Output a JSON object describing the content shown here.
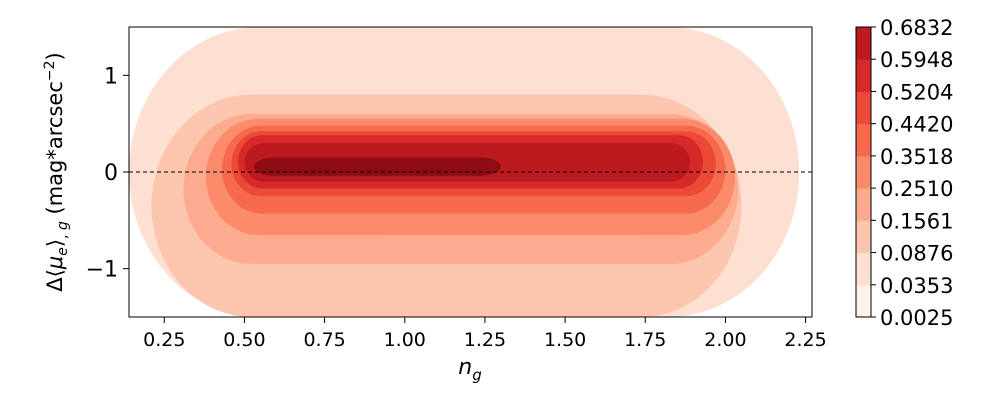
{
  "chart_data": {
    "type": "contour",
    "title": "",
    "xlabel": "n_g",
    "ylabel": "Δ⟨μ_e⟩, g (mag*arcsec⁻²)",
    "xlim": [
      0.14,
      2.27
    ],
    "ylim": [
      -1.5,
      1.5
    ],
    "x_ticks": [
      0.25,
      0.5,
      0.75,
      1.0,
      1.25,
      1.5,
      1.75,
      2.0,
      2.25
    ],
    "x_tick_labels": [
      "0.25",
      "0.50",
      "0.75",
      "1.00",
      "1.25",
      "1.50",
      "1.75",
      "2.00",
      "2.25"
    ],
    "y_ticks": [
      1,
      0,
      -1
    ],
    "y_tick_labels": [
      "1",
      "0",
      "−1"
    ],
    "reference_line": {
      "y": 0,
      "style": "dashed"
    },
    "colormap": "Reds",
    "levels": [
      0.0025,
      0.0353,
      0.0876,
      0.1561,
      0.251,
      0.3518,
      0.442,
      0.5204,
      0.5948,
      0.6832
    ],
    "colorbar_labels": [
      "0.0025",
      "0.0353",
      "0.0876",
      "0.1561",
      "0.2510",
      "0.3518",
      "0.4420",
      "0.5204",
      "0.5948",
      "0.6832"
    ],
    "level_colors": [
      "#fff0e8",
      "#fde0d2",
      "#fcc5ad",
      "#fcab8f",
      "#fb8b6b",
      "#f6694c",
      "#ec4a36",
      "#d8292a",
      "#bc1a1f",
      "#8f0c14"
    ],
    "density_regions": [
      {
        "level": 1,
        "x_range": [
          0.14,
          2.23
        ],
        "y_range": [
          -1.5,
          1.5
        ]
      },
      {
        "level": 2,
        "x_range": [
          0.21,
          2.05
        ],
        "y_range": [
          -1.5,
          0.8
        ]
      },
      {
        "level": 3,
        "x_range": [
          0.31,
          2.04
        ],
        "y_range": [
          -0.95,
          0.6
        ]
      },
      {
        "level": 4,
        "x_range": [
          0.38,
          2.03
        ],
        "y_range": [
          -0.65,
          0.55
        ]
      },
      {
        "level": 5,
        "x_range": [
          0.43,
          2.0
        ],
        "y_range": [
          -0.43,
          0.48
        ]
      },
      {
        "level": 6,
        "x_range": [
          0.46,
          1.97
        ],
        "y_range": [
          -0.25,
          0.42
        ]
      },
      {
        "level": 7,
        "x_range": [
          0.48,
          1.93
        ],
        "y_range": [
          -0.17,
          0.38
        ]
      },
      {
        "level": 8,
        "x_range": [
          0.5,
          1.89
        ],
        "y_range": [
          -0.1,
          0.3
        ]
      },
      {
        "level": 9,
        "x_range": [
          0.53,
          1.3
        ],
        "y_range": [
          -0.04,
          0.15
        ]
      }
    ]
  }
}
